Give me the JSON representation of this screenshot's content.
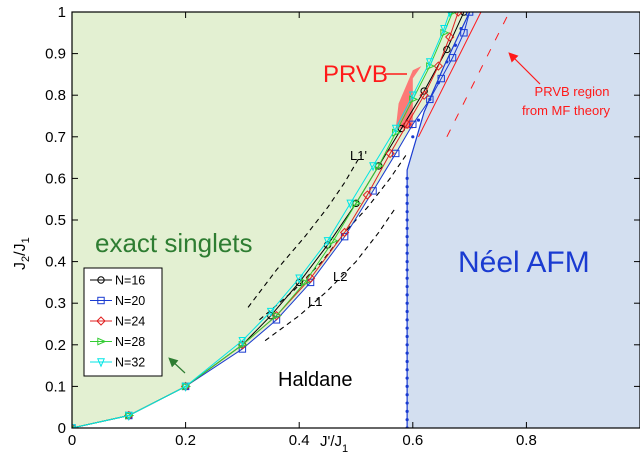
{
  "chart_data": {
    "type": "line",
    "title": "",
    "xlabel": "J'/J",
    "xlabel_sub": "1",
    "ylabel": "J",
    "ylabel_sub1": "2",
    "ylabel_mid": "/J",
    "ylabel_sub2": "1",
    "xlim": [
      0,
      1.0
    ],
    "ylim": [
      0,
      1.0
    ],
    "xticks": [
      0,
      0.2,
      0.4,
      0.6,
      0.8
    ],
    "xtick_labels": [
      "0",
      "0.2",
      "0.4",
      "0.6",
      "0.8"
    ],
    "yticks": [
      0,
      0.1,
      0.2,
      0.3,
      0.4,
      0.5,
      0.6,
      0.7,
      0.8,
      0.9,
      1
    ],
    "ytick_labels": [
      "0",
      "0.1",
      "0.2",
      "0.3",
      "0.4",
      "0.5",
      "0.6",
      "0.7",
      "0.8",
      "0.9",
      "1"
    ],
    "grid": false,
    "legend_position": "bottom-left",
    "regions": {
      "exact_singlets": {
        "label": "exact singlets",
        "color": "#e3f0d2",
        "text_color": "#2e7d32"
      },
      "neel": {
        "label": "Néel AFM",
        "color": "#d3dff0",
        "text_color": "#1a3bd1",
        "boundary_x": 0.59
      },
      "prvb": {
        "label": "PRVB",
        "color": "#ff6b6b",
        "text_color": "#ff1a1a"
      },
      "prvb_mf": {
        "label_line1": "PRVB region",
        "label_line2": "from MF theory",
        "color": "#ff1a1a"
      },
      "haldane": {
        "label": "Haldane",
        "text_color": "#000000"
      }
    },
    "reference_curves": [
      {
        "name": "L1",
        "x": [
          0.34,
          0.4,
          0.45,
          0.5,
          0.54,
          0.57
        ],
        "y": [
          0.21,
          0.27,
          0.33,
          0.4,
          0.47,
          0.53
        ]
      },
      {
        "name": "L2",
        "x": [
          0.33,
          0.39,
          0.44,
          0.48,
          0.52,
          0.56,
          0.59
        ],
        "y": [
          0.26,
          0.33,
          0.4,
          0.47,
          0.53,
          0.6,
          0.66
        ]
      },
      {
        "name": "L1'",
        "x": [
          0.31,
          0.36,
          0.41,
          0.45,
          0.48,
          0.51
        ],
        "y": [
          0.29,
          0.38,
          0.46,
          0.53,
          0.59,
          0.66
        ]
      }
    ],
    "series": [
      {
        "name": "N=16",
        "color": "#000000",
        "marker": "circle",
        "x": [
          0,
          0.1,
          0.2,
          0.3,
          0.35,
          0.4,
          0.45,
          0.5,
          0.54,
          0.58,
          0.62,
          0.66,
          0.69
        ],
        "y": [
          0,
          0.03,
          0.1,
          0.2,
          0.27,
          0.35,
          0.44,
          0.54,
          0.63,
          0.72,
          0.81,
          0.91,
          1.0
        ]
      },
      {
        "name": "N=20",
        "color": "#1a3bd1",
        "marker": "square",
        "x": [
          0,
          0.1,
          0.2,
          0.3,
          0.36,
          0.42,
          0.48,
          0.53,
          0.57,
          0.6,
          0.63,
          0.65,
          0.67,
          0.69,
          0.7
        ],
        "y": [
          0,
          0.03,
          0.1,
          0.19,
          0.26,
          0.35,
          0.46,
          0.57,
          0.66,
          0.73,
          0.79,
          0.84,
          0.89,
          0.95,
          1.0
        ]
      },
      {
        "name": "N=24",
        "color": "#e02020",
        "marker": "diamond",
        "x": [
          0,
          0.1,
          0.2,
          0.3,
          0.36,
          0.42,
          0.48,
          0.52,
          0.56,
          0.59,
          0.62,
          0.645,
          0.665,
          0.68
        ],
        "y": [
          0,
          0.03,
          0.1,
          0.2,
          0.27,
          0.36,
          0.47,
          0.56,
          0.66,
          0.73,
          0.8,
          0.87,
          0.94,
          1.0
        ]
      },
      {
        "name": "N=28",
        "color": "#33cc33",
        "marker": "triangle-right",
        "x": [
          0,
          0.1,
          0.2,
          0.3,
          0.36,
          0.41,
          0.46,
          0.5,
          0.54,
          0.57,
          0.6,
          0.63,
          0.655,
          0.67
        ],
        "y": [
          0,
          0.03,
          0.1,
          0.2,
          0.27,
          0.35,
          0.45,
          0.54,
          0.63,
          0.71,
          0.79,
          0.87,
          0.95,
          1.0
        ]
      },
      {
        "name": "N=32",
        "color": "#00e5e5",
        "marker": "triangle-down",
        "x": [
          0,
          0.1,
          0.2,
          0.3,
          0.35,
          0.4,
          0.45,
          0.49,
          0.53,
          0.57,
          0.6,
          0.63,
          0.655,
          0.665
        ],
        "y": [
          0,
          0.03,
          0.1,
          0.21,
          0.28,
          0.36,
          0.45,
          0.54,
          0.63,
          0.72,
          0.8,
          0.88,
          0.96,
          1.0
        ]
      }
    ]
  }
}
